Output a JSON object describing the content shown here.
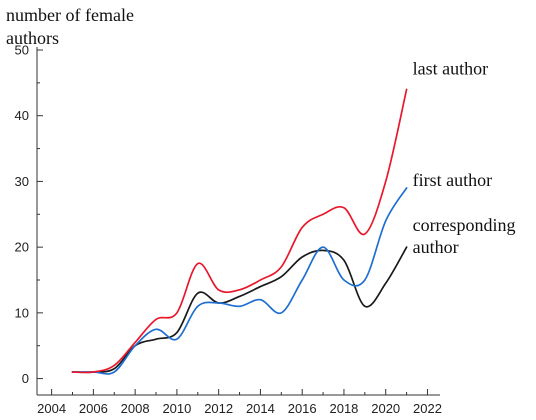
{
  "chart_data": {
    "type": "line",
    "ylabel_lines": [
      "number of female",
      "authors"
    ],
    "xlabel": "",
    "xlim": [
      2003.3,
      2022.6
    ],
    "ylim": [
      -2.5,
      50
    ],
    "x_ticks": [
      2004,
      2006,
      2008,
      2010,
      2012,
      2014,
      2016,
      2018,
      2020,
      2022
    ],
    "x_tick_labels": [
      "2004",
      "2006",
      "2008",
      "2010",
      "2012",
      "2014",
      "2016",
      "2018",
      "2020",
      "2022"
    ],
    "y_ticks": [
      0,
      10,
      20,
      30,
      40,
      50
    ],
    "y_tick_labels": [
      "0",
      "10",
      "20",
      "30",
      "40",
      "50"
    ],
    "grid": false,
    "legend": "inline labels at right end of each line",
    "series": [
      {
        "name": "last author",
        "color": "#e8192c",
        "x": [
          2005,
          2006,
          2007,
          2008,
          2009,
          2010,
          2011,
          2012,
          2013,
          2014,
          2015,
          2016,
          2017,
          2018,
          2019,
          2020,
          2021
        ],
        "values": [
          1,
          1,
          2,
          5.5,
          9,
          10,
          17.5,
          13.5,
          13.5,
          15,
          17,
          23,
          25,
          26,
          22,
          30,
          44
        ],
        "label_lines": [
          "last author"
        ]
      },
      {
        "name": "first author",
        "color": "#1f6fd1",
        "x": [
          2005,
          2006,
          2007,
          2008,
          2009,
          2010,
          2011,
          2012,
          2013,
          2014,
          2015,
          2016,
          2017,
          2018,
          2019,
          2020,
          2021
        ],
        "values": [
          1,
          1,
          1,
          5,
          7.5,
          6,
          11,
          11.5,
          11,
          12,
          10,
          15,
          20,
          15,
          15,
          24,
          29
        ],
        "label_lines": [
          "first author"
        ]
      },
      {
        "name": "corresponding author",
        "color": "#1a1a1a",
        "x": [
          2005,
          2006,
          2007,
          2008,
          2009,
          2010,
          2011,
          2012,
          2013,
          2014,
          2015,
          2016,
          2017,
          2018,
          2019,
          2020,
          2021
        ],
        "values": [
          1,
          1,
          1.5,
          5,
          6,
          7,
          13,
          11.5,
          12.5,
          14,
          15.5,
          18.5,
          19.5,
          18,
          11,
          14.5,
          20
        ],
        "label_lines": [
          "corresponding",
          "author"
        ]
      }
    ]
  }
}
